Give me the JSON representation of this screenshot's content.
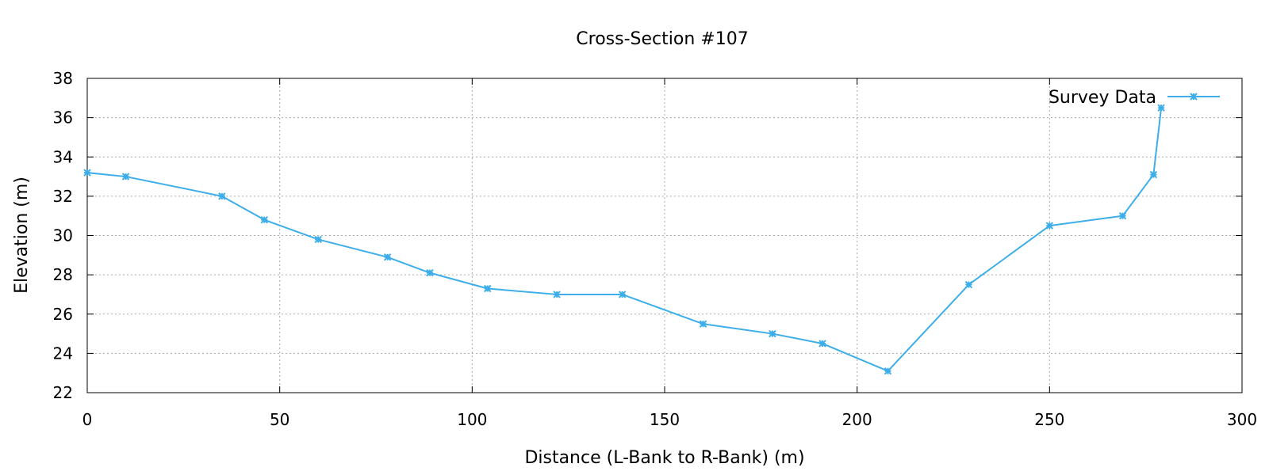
{
  "chart_data": {
    "type": "line",
    "title": "Cross-Section #107",
    "xlabel": "Distance (L-Bank to R-Bank) (m)",
    "ylabel": "Elevation (m)",
    "xlim": [
      0,
      300
    ],
    "ylim": [
      22,
      38
    ],
    "xticks": [
      0,
      50,
      100,
      150,
      200,
      250,
      300
    ],
    "yticks": [
      22,
      24,
      26,
      28,
      30,
      32,
      34,
      36,
      38
    ],
    "grid": true,
    "legend_position": "top-right",
    "series": [
      {
        "name": "Survey Data",
        "color": "#3daee9",
        "marker": "star",
        "x": [
          0,
          10,
          35,
          46,
          60,
          78,
          89,
          104,
          122,
          139,
          160,
          178,
          191,
          208,
          229,
          250,
          269,
          277,
          279
        ],
        "y": [
          33.2,
          33.0,
          32.0,
          30.8,
          29.8,
          28.9,
          28.1,
          27.3,
          27.0,
          27.0,
          25.5,
          25.0,
          24.5,
          23.1,
          27.5,
          30.5,
          31.0,
          33.1,
          36.5
        ]
      }
    ]
  }
}
